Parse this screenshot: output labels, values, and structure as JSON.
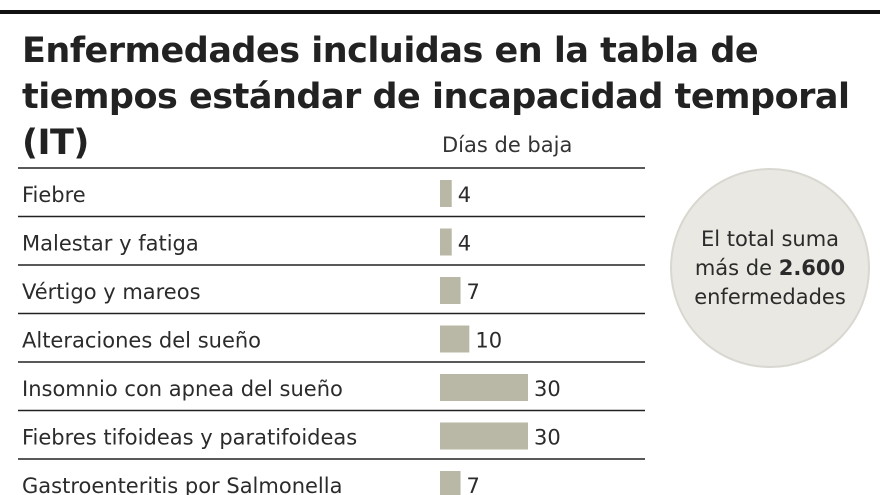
{
  "title": "Enfermedades incluidas en la tabla de tiempos estándar de incapacidad temporal (IT)",
  "chart_data": {
    "type": "bar",
    "orientation": "horizontal",
    "value_label": "Días de baja",
    "categories": [
      "Fiebre",
      "Malestar y fatiga",
      "Vértigo y mareos",
      "Alteraciones del sueño",
      "Insomnio con apnea del sueño",
      "Fiebres tifoideas y paratifoideas",
      "Gastroenteritis por Salmonella"
    ],
    "values": [
      4,
      4,
      7,
      10,
      30,
      30,
      7
    ],
    "bar_color": "#b9b8a6",
    "grid": false,
    "xlim": [
      0,
      30
    ]
  },
  "note": {
    "line1": "El total suma",
    "line2_pre": "más de ",
    "line2_bold": "2.600",
    "line3": "enfermedades"
  }
}
